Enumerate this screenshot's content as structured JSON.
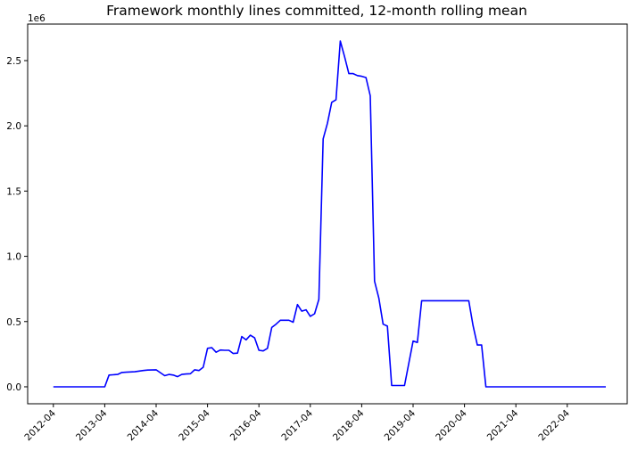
{
  "chart_data": {
    "type": "line",
    "title": "Framework monthly lines committed, 12-month rolling mean",
    "xlabel": "",
    "ylabel": "",
    "y_offset_label": "1e6",
    "x_ticks": [
      "2012-04",
      "2013-04",
      "2014-04",
      "2015-04",
      "2016-04",
      "2017-04",
      "2018-04",
      "2019-04",
      "2020-04",
      "2021-04",
      "2022-04"
    ],
    "y_ticks": [
      "0.0",
      "0.5",
      "1.0",
      "1.5",
      "2.0",
      "2.5"
    ],
    "y_tick_values": [
      0,
      500000,
      1000000,
      1500000,
      2000000,
      2500000
    ],
    "xlim": [
      "2011-10",
      "2023-06"
    ],
    "ylim": [
      -130000,
      2780000
    ],
    "grid": false,
    "line_color": "#0000ff",
    "series": [
      {
        "x": [
          "2012-04",
          "2013-04",
          "2013-05",
          "2013-07",
          "2013-08",
          "2013-09",
          "2013-11",
          "2014-01",
          "2014-02",
          "2014-04",
          "2014-06",
          "2014-07",
          "2014-08",
          "2014-09",
          "2014-10",
          "2014-11",
          "2014-12",
          "2015-01",
          "2015-02",
          "2015-03",
          "2015-04",
          "2015-05",
          "2015-06",
          "2015-07",
          "2015-08",
          "2015-09",
          "2015-10",
          "2015-11",
          "2015-12",
          "2016-01",
          "2016-02",
          "2016-03",
          "2016-04",
          "2016-05",
          "2016-06",
          "2016-07",
          "2016-08",
          "2016-09",
          "2016-10",
          "2016-11",
          "2016-12",
          "2017-01",
          "2017-02",
          "2017-03",
          "2017-04",
          "2017-05",
          "2017-06",
          "2017-07",
          "2017-08",
          "2017-09",
          "2017-10",
          "2017-11",
          "2017-12",
          "2018-01",
          "2018-02",
          "2018-03",
          "2018-04",
          "2018-05",
          "2018-06",
          "2018-07",
          "2018-08",
          "2018-09",
          "2018-10",
          "2018-11",
          "2018-12",
          "2019-01",
          "2019-02",
          "2019-03",
          "2019-04",
          "2019-05",
          "2019-06",
          "2019-07",
          "2019-08",
          "2019-09",
          "2019-10",
          "2019-11",
          "2019-12",
          "2020-01",
          "2020-02",
          "2020-03",
          "2020-04",
          "2020-05",
          "2020-06",
          "2020-07",
          "2020-08",
          "2020-09",
          "2020-10",
          "2020-11",
          "2020-12",
          "2021-01",
          "2021-02",
          "2021-03",
          "2021-04",
          "2021-05",
          "2021-06",
          "2021-07",
          "2021-08",
          "2021-09",
          "2021-10",
          "2021-11",
          "2021-12",
          "2022-01",
          "2022-02",
          "2022-03",
          "2022-04",
          "2022-05",
          "2022-06",
          "2022-07",
          "2022-08",
          "2022-09",
          "2022-10",
          "2022-11",
          "2022-12",
          "2023-01"
        ],
        "y": [
          0,
          0,
          90000,
          95000,
          110000,
          112000,
          115000,
          125000,
          128000,
          130000,
          85000,
          95000,
          90000,
          78000,
          95000,
          98000,
          100000,
          130000,
          125000,
          150000,
          295000,
          300000,
          265000,
          282000,
          280000,
          280000,
          255000,
          258000,
          385000,
          360000,
          395000,
          375000,
          280000,
          275000,
          295000,
          455000,
          480000,
          510000,
          510000,
          510000,
          495000,
          630000,
          580000,
          590000,
          540000,
          560000,
          670000,
          1900000,
          2020000,
          2180000,
          2200000,
          2650000,
          2530000,
          2400000,
          2400000,
          2385000,
          2380000,
          2370000,
          2230000,
          810000,
          680000,
          480000,
          465000,
          10000,
          10000,
          10000,
          10000,
          180000,
          350000,
          340000,
          660000,
          660000,
          660000,
          660000,
          660000,
          660000,
          660000,
          660000,
          660000,
          660000,
          660000,
          660000,
          470000,
          320000,
          320000,
          0,
          0,
          0,
          0,
          0,
          0,
          0,
          0,
          0,
          0,
          0,
          0,
          0,
          0,
          0,
          0,
          0,
          0,
          0,
          0,
          0,
          0,
          0,
          0,
          0,
          0,
          0,
          0,
          0
        ]
      }
    ]
  }
}
